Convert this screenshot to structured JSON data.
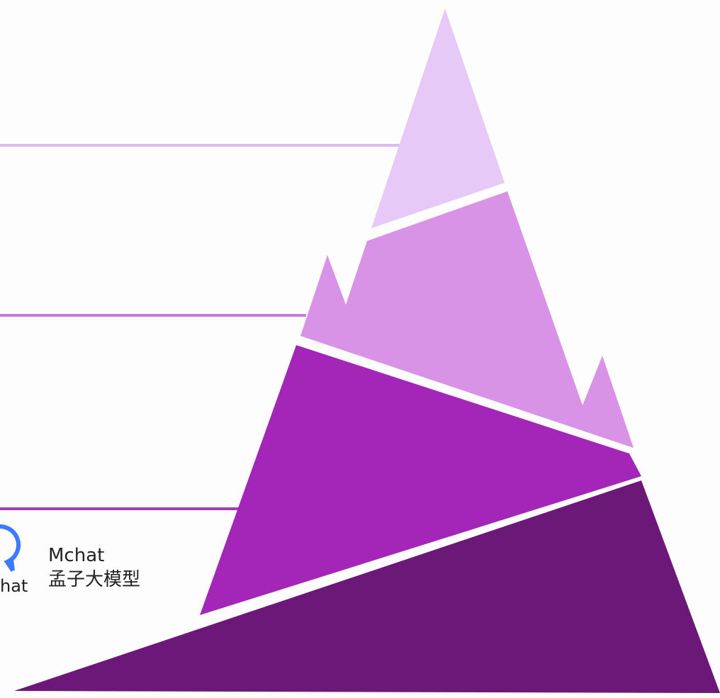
{
  "colors": {
    "background": "#fdfdfd",
    "tier_lightest": "#e6c9f7",
    "tier_light": "#d892e6",
    "tier_medium": "#a326b8",
    "tier_dark": "#6b1878",
    "connector_top": "#e0b8f2",
    "connector_middle": "#c77ad8",
    "connector_bottom": "#a43cb8",
    "logo_blue": "#3b7bff"
  },
  "logo": {
    "icon": "chat-bubble-logo-icon",
    "text": "hat"
  },
  "product": {
    "name": "Mchat",
    "subtitle": "孟子大模型"
  }
}
